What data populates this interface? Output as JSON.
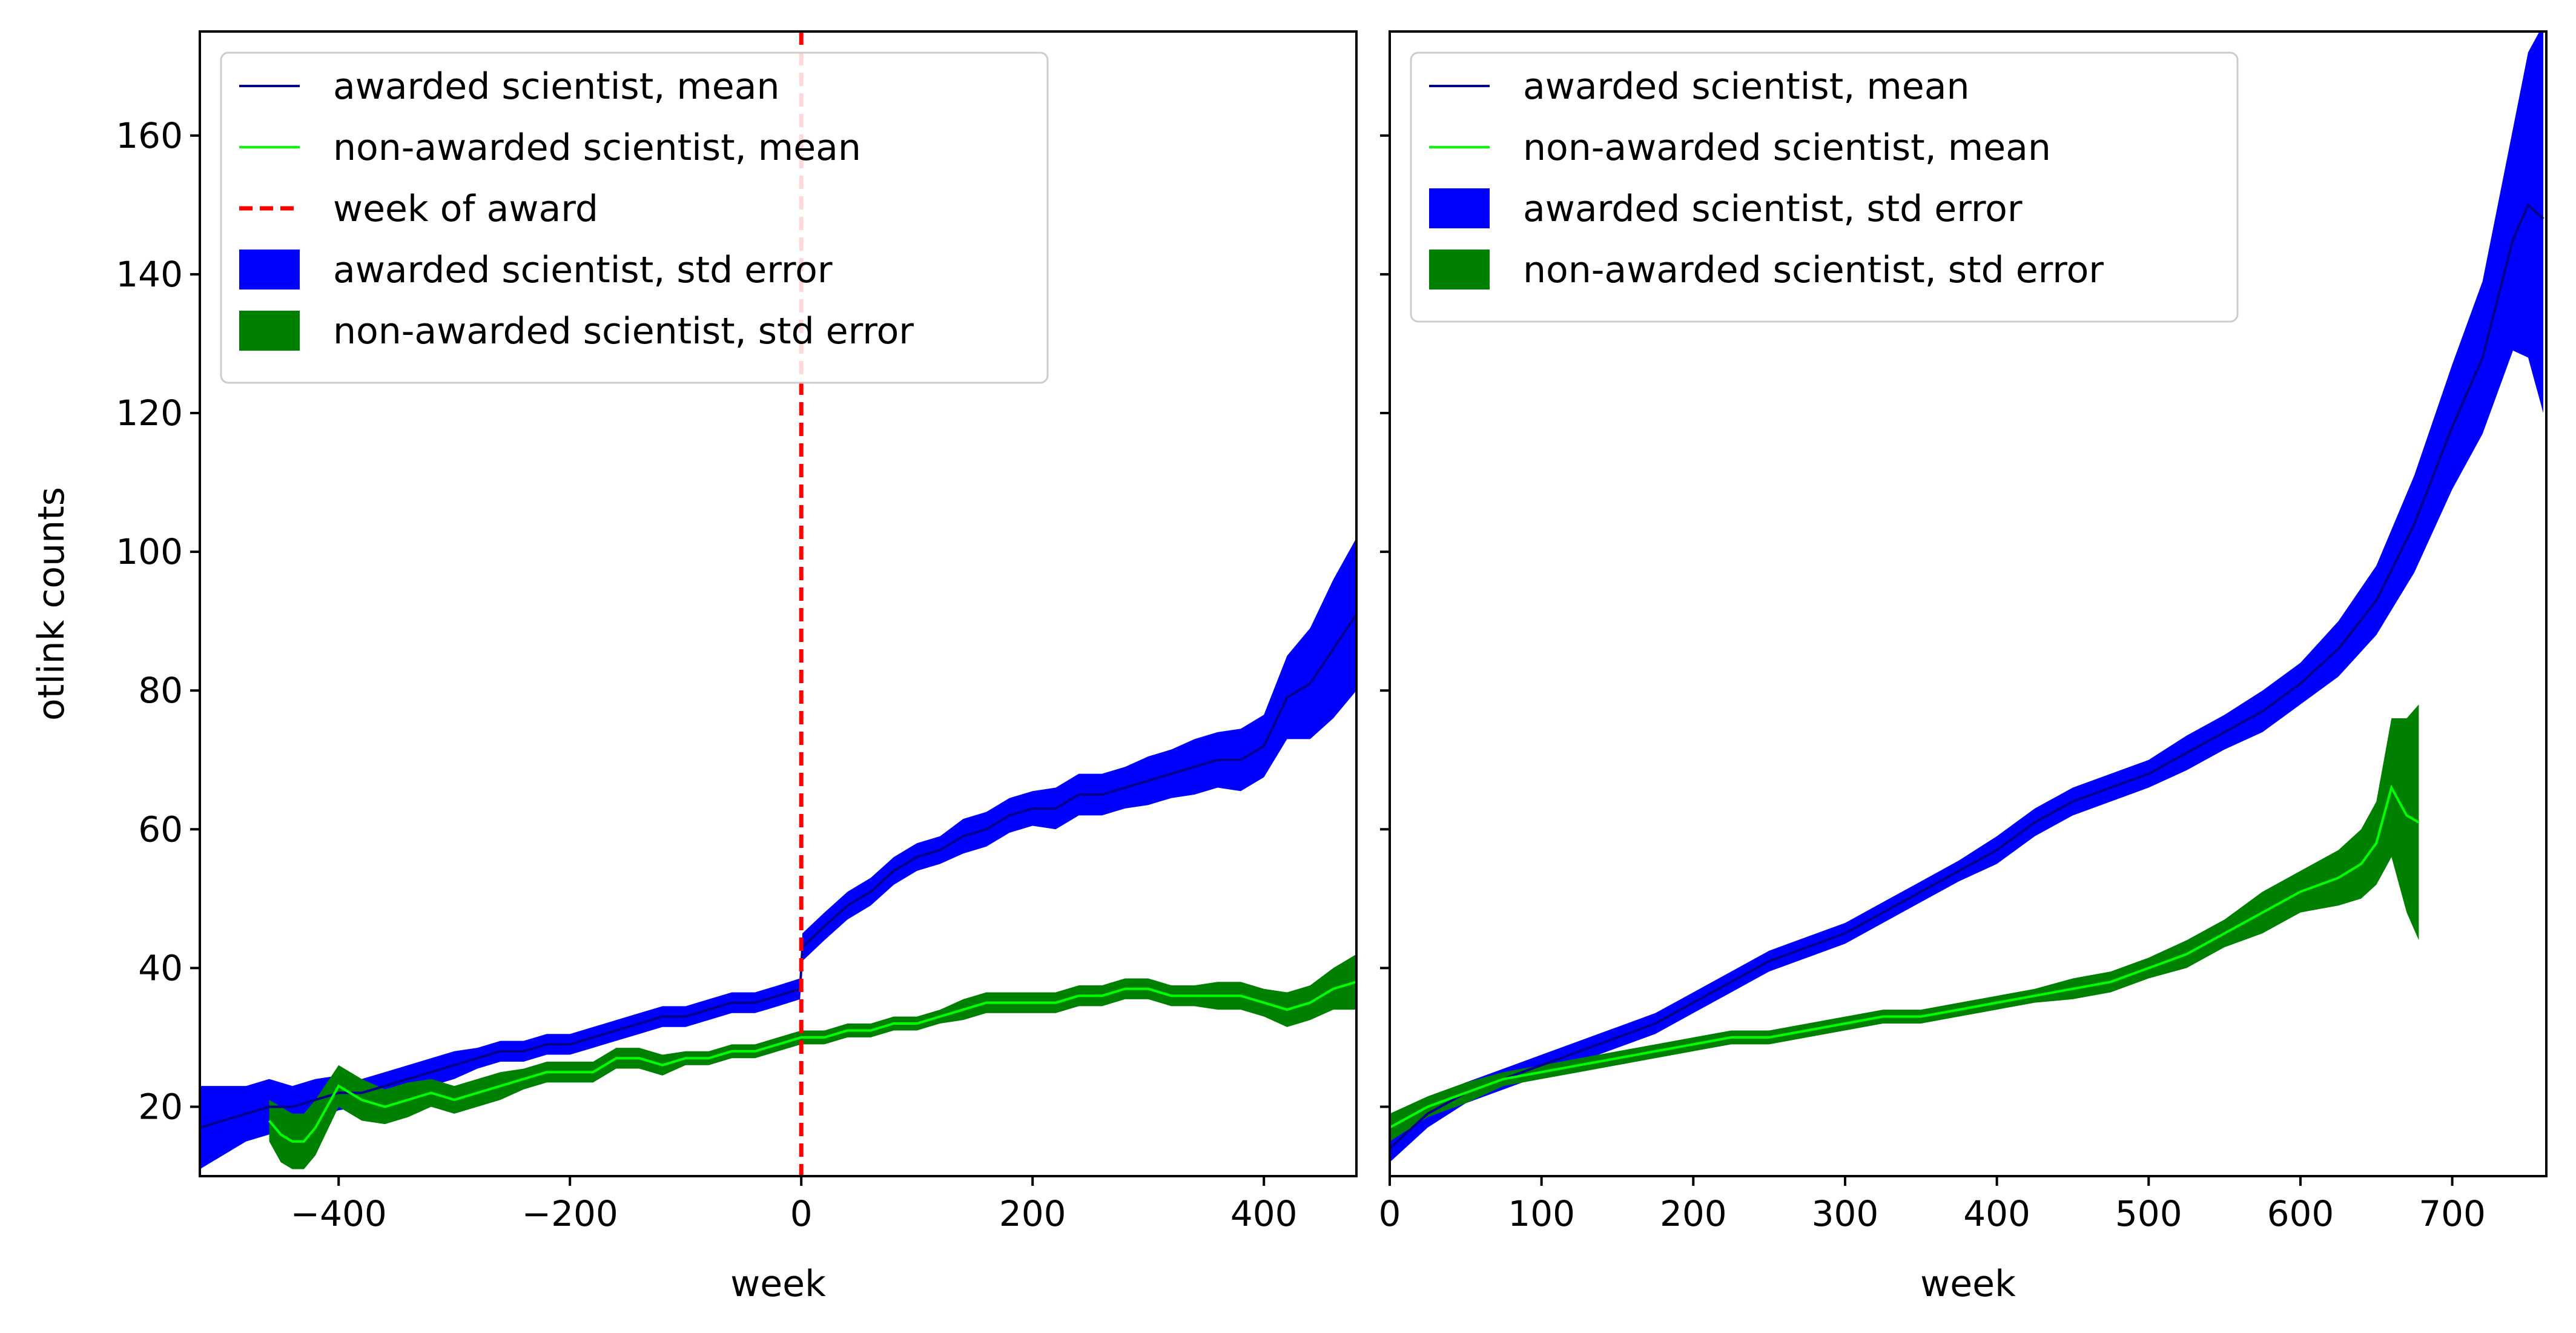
{
  "chart_data": [
    {
      "type": "line",
      "xlabel": "week",
      "ylabel": "otlink counts",
      "xlim": [
        -520,
        480
      ],
      "ylim": [
        10,
        175
      ],
      "xticks": [
        -400,
        -200,
        0,
        200,
        400
      ],
      "xtick_labels": [
        "−400",
        "−200",
        "0",
        "200",
        "400"
      ],
      "yticks": [
        20,
        40,
        60,
        80,
        100,
        120,
        140,
        160
      ],
      "grid": false,
      "legend_position": "upper-left",
      "legend": [
        {
          "label": "awarded scientist, mean",
          "kind": "line",
          "color": "#00008b"
        },
        {
          "label": "non-awarded scientist, mean",
          "kind": "line",
          "color": "#00ff00"
        },
        {
          "label": "week of award",
          "kind": "dashed-line",
          "color": "#ff0000"
        },
        {
          "label": "awarded scientist, std error",
          "kind": "patch",
          "color": "#0000ff"
        },
        {
          "label": "non-awarded scientist, std error",
          "kind": "patch",
          "color": "#008000"
        }
      ],
      "vline": {
        "x": 0,
        "color": "#ff0000",
        "label": "week of award"
      },
      "series": [
        {
          "name": "awarded scientist, mean",
          "color": "#00008b",
          "band_color": "#0000ff",
          "x": [
            -520,
            -500,
            -480,
            -460,
            -440,
            -420,
            -400,
            -380,
            -360,
            -340,
            -320,
            -300,
            -280,
            -260,
            -240,
            -220,
            -200,
            -180,
            -160,
            -140,
            -120,
            -100,
            -80,
            -60,
            -40,
            -20,
            -1,
            1,
            20,
            40,
            60,
            80,
            100,
            120,
            140,
            160,
            180,
            200,
            220,
            240,
            260,
            280,
            300,
            320,
            340,
            360,
            380,
            400,
            420,
            440,
            460,
            480
          ],
          "y": [
            17,
            18,
            19,
            20,
            20,
            21,
            22,
            22,
            23,
            24,
            25,
            26,
            27,
            28,
            28,
            29,
            29,
            30,
            31,
            32,
            33,
            33,
            34,
            35,
            35,
            36,
            37,
            43,
            46,
            49,
            51,
            54,
            56,
            57,
            59,
            60,
            62,
            63,
            63,
            65,
            65,
            66,
            67,
            68,
            69,
            70,
            70,
            72,
            79,
            81,
            86,
            91
          ],
          "err": [
            6,
            5,
            4,
            4,
            3,
            3,
            2.5,
            2,
            2,
            2,
            2,
            2,
            1.5,
            1.5,
            1.5,
            1.5,
            1.5,
            1.5,
            1.5,
            1.5,
            1.5,
            1.5,
            1.5,
            1.5,
            1.5,
            1.5,
            1.5,
            2,
            2,
            2,
            2,
            2,
            2,
            2,
            2.5,
            2.5,
            2.5,
            2.5,
            3,
            3,
            3,
            3,
            3.5,
            3.5,
            4,
            4,
            4.5,
            4.5,
            6,
            8,
            10,
            11
          ]
        },
        {
          "name": "non-awarded scientist, mean",
          "color": "#00ff00",
          "band_color": "#008000",
          "x": [
            -460,
            -450,
            -440,
            -430,
            -420,
            -400,
            -380,
            -360,
            -340,
            -320,
            -300,
            -280,
            -260,
            -240,
            -220,
            -200,
            -180,
            -160,
            -140,
            -120,
            -100,
            -80,
            -60,
            -40,
            -20,
            0,
            20,
            40,
            60,
            80,
            100,
            120,
            140,
            160,
            180,
            200,
            220,
            240,
            260,
            280,
            300,
            320,
            340,
            360,
            380,
            400,
            420,
            440,
            460,
            480
          ],
          "y": [
            18,
            16,
            15,
            15,
            17,
            23,
            21,
            20,
            21,
            22,
            21,
            22,
            23,
            24,
            25,
            25,
            25,
            27,
            27,
            26,
            27,
            27,
            28,
            28,
            29,
            30,
            30,
            31,
            31,
            32,
            32,
            33,
            34,
            35,
            35,
            35,
            35,
            36,
            36,
            37,
            37,
            36,
            36,
            36,
            36,
            35,
            34,
            35,
            37,
            38
          ],
          "err": [
            3,
            4,
            4,
            4,
            4,
            3,
            3,
            2.5,
            2.5,
            2,
            2,
            2,
            2,
            1.5,
            1.5,
            1.5,
            1.5,
            1.5,
            1.5,
            1.5,
            1,
            1,
            1,
            1,
            1,
            1,
            1,
            1,
            1,
            1,
            1,
            1,
            1.5,
            1.5,
            1.5,
            1.5,
            1.5,
            1.5,
            1.5,
            1.5,
            1.5,
            1.5,
            1.5,
            2,
            2,
            2,
            2.5,
            2.5,
            3,
            4
          ]
        }
      ]
    },
    {
      "type": "line",
      "xlabel": "week",
      "ylabel": "",
      "xlim": [
        0,
        762
      ],
      "ylim": [
        10,
        175
      ],
      "xticks": [
        0,
        100,
        200,
        300,
        400,
        500,
        600,
        700
      ],
      "xtick_labels": [
        "0",
        "100",
        "200",
        "300",
        "400",
        "500",
        "600",
        "700"
      ],
      "yticks": [
        20,
        40,
        60,
        80,
        100,
        120,
        140,
        160
      ],
      "show_ytick_labels": false,
      "grid": false,
      "legend_position": "upper-left",
      "legend": [
        {
          "label": "awarded scientist, mean",
          "kind": "line",
          "color": "#00008b"
        },
        {
          "label": "non-awarded scientist, mean",
          "kind": "line",
          "color": "#00ff00"
        },
        {
          "label": "awarded scientist, std error",
          "kind": "patch",
          "color": "#0000ff"
        },
        {
          "label": "non-awarded scientist, std error",
          "kind": "patch",
          "color": "#008000"
        }
      ],
      "series": [
        {
          "name": "awarded scientist, mean",
          "color": "#00008b",
          "band_color": "#0000ff",
          "x": [
            0,
            25,
            50,
            75,
            100,
            125,
            150,
            175,
            200,
            225,
            250,
            275,
            300,
            325,
            350,
            375,
            400,
            425,
            450,
            475,
            500,
            525,
            550,
            575,
            600,
            625,
            650,
            675,
            700,
            720,
            740,
            750,
            760
          ],
          "y": [
            14,
            19,
            22,
            24,
            26,
            28,
            30,
            32,
            35,
            38,
            41,
            43,
            45,
            48,
            51,
            54,
            57,
            61,
            64,
            66,
            68,
            71,
            74,
            77,
            81,
            86,
            93,
            104,
            118,
            128,
            145,
            150,
            148
          ],
          "err": [
            2,
            2,
            1.5,
            1.5,
            1.5,
            1.5,
            1.5,
            1.5,
            1.5,
            1.5,
            1.5,
            1.5,
            1.5,
            1.5,
            1.5,
            1.5,
            2,
            2,
            2,
            2,
            2,
            2.5,
            2.5,
            3,
            3,
            4,
            5,
            7,
            9,
            11,
            16,
            22,
            28
          ]
        },
        {
          "name": "non-awarded scientist, mean",
          "color": "#00ff00",
          "band_color": "#008000",
          "x": [
            0,
            25,
            50,
            75,
            100,
            125,
            150,
            175,
            200,
            225,
            250,
            275,
            300,
            325,
            350,
            375,
            400,
            425,
            450,
            475,
            500,
            525,
            550,
            575,
            600,
            625,
            640,
            650,
            660,
            670,
            678
          ],
          "y": [
            17,
            20,
            22,
            24,
            25,
            26,
            27,
            28,
            29,
            30,
            30,
            31,
            32,
            33,
            33,
            34,
            35,
            36,
            37,
            38,
            40,
            42,
            45,
            48,
            51,
            53,
            55,
            58,
            66,
            62,
            61
          ],
          "err": [
            2,
            1.5,
            1.5,
            1,
            1,
            1,
            1,
            1,
            1,
            1,
            1,
            1,
            1,
            1,
            1,
            1,
            1,
            1,
            1.5,
            1.5,
            1.5,
            2,
            2,
            3,
            3,
            4,
            5,
            6,
            10,
            14,
            17
          ]
        }
      ]
    }
  ]
}
